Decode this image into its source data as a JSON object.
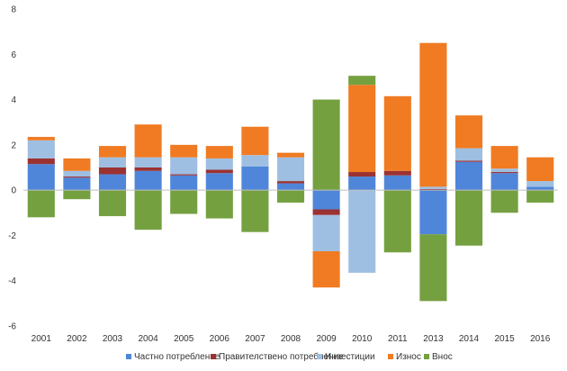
{
  "chart_data": {
    "type": "bar",
    "stacked": true,
    "categories": [
      "2001",
      "2002",
      "2003",
      "2004",
      "2005",
      "2006",
      "2007",
      "2008",
      "2009",
      "2010",
      "2011",
      "2013",
      "2014",
      "2015",
      "2016"
    ],
    "series": [
      {
        "name": "Частно потребление",
        "color": "#4f86d9",
        "values": [
          1.15,
          0.55,
          0.7,
          0.85,
          0.65,
          0.75,
          1.05,
          0.3,
          -0.85,
          0.6,
          0.65,
          -1.95,
          1.25,
          0.75,
          0.15
        ]
      },
      {
        "name": "Правителствено потребление",
        "color": "#9b3232",
        "values": [
          0.25,
          0.05,
          0.3,
          0.15,
          0.05,
          0.15,
          0.0,
          0.1,
          -0.25,
          0.2,
          0.2,
          0.05,
          0.05,
          0.05,
          0.0
        ]
      },
      {
        "name": "Инвестиции",
        "color": "#9fbfe2",
        "values": [
          0.8,
          0.25,
          0.45,
          0.45,
          0.75,
          0.5,
          0.5,
          1.05,
          -1.6,
          -3.65,
          0.0,
          0.1,
          0.55,
          0.15,
          0.25
        ]
      },
      {
        "name": "Износ",
        "color": "#f07b22",
        "values": [
          0.15,
          0.55,
          0.5,
          1.45,
          0.55,
          0.55,
          1.25,
          0.2,
          -1.6,
          3.85,
          3.3,
          6.35,
          1.45,
          1.0,
          1.05
        ]
      },
      {
        "name": "Внос",
        "color": "#75a040",
        "values": [
          -1.2,
          -0.4,
          -1.15,
          -1.75,
          -1.05,
          -1.25,
          -1.85,
          -0.55,
          4.0,
          0.4,
          -2.75,
          -2.95,
          -2.45,
          -1.0,
          -0.55
        ]
      }
    ],
    "ylim": [
      -6,
      8
    ],
    "yticks": [
      -6,
      -4,
      -2,
      0,
      2,
      4,
      6,
      8
    ],
    "title": "",
    "xlabel": "",
    "ylabel": "",
    "grid": false,
    "legend_position": "bottom"
  }
}
